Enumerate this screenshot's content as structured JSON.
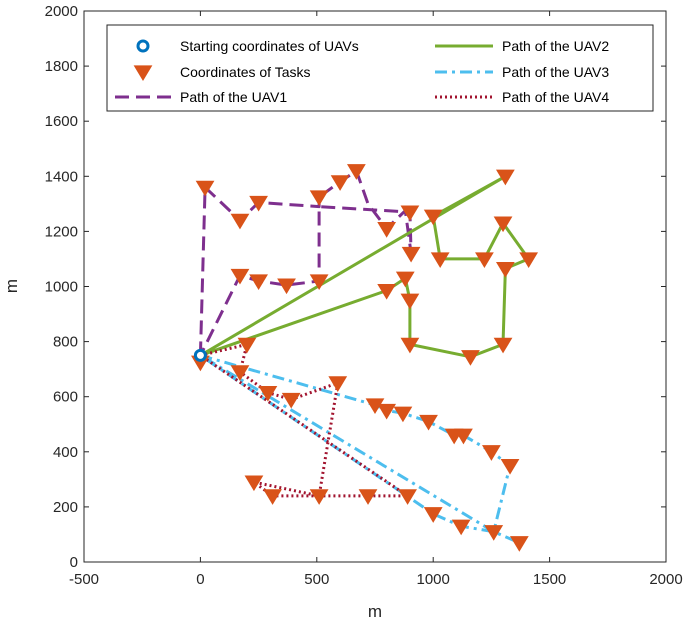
{
  "chart_data": {
    "type": "scatter",
    "title": "",
    "xlabel": "m",
    "ylabel": "m",
    "xlim": [
      -500,
      2000
    ],
    "ylim": [
      0,
      2000
    ],
    "xticks": [
      -500,
      0,
      500,
      1000,
      1500,
      2000
    ],
    "yticks": [
      0,
      200,
      400,
      600,
      800,
      1000,
      1200,
      1400,
      1600,
      1800,
      2000
    ],
    "grid": false,
    "legend_position": "top",
    "start": {
      "name": "Starting coordinates of UAVs",
      "x": 0,
      "y": 750,
      "color": "#0072BD"
    },
    "tasks": {
      "name": "Coordinates of Tasks",
      "color": "#D95319",
      "points": [
        [
          20,
          1360
        ],
        [
          170,
          1240
        ],
        [
          250,
          1305
        ],
        [
          510,
          1325
        ],
        [
          600,
          1380
        ],
        [
          670,
          1420
        ],
        [
          800,
          1210
        ],
        [
          900,
          1270
        ],
        [
          905,
          1120
        ],
        [
          170,
          1040
        ],
        [
          250,
          1020
        ],
        [
          370,
          1005
        ],
        [
          510,
          1020
        ],
        [
          1000,
          1255
        ],
        [
          1030,
          1100
        ],
        [
          1220,
          1100
        ],
        [
          1300,
          1230
        ],
        [
          1310,
          1065
        ],
        [
          1410,
          1100
        ],
        [
          1310,
          1400
        ],
        [
          800,
          985
        ],
        [
          880,
          1030
        ],
        [
          900,
          950
        ],
        [
          900,
          790
        ],
        [
          1160,
          745
        ],
        [
          1300,
          790
        ],
        [
          0,
          725
        ],
        [
          200,
          790
        ],
        [
          170,
          690
        ],
        [
          290,
          615
        ],
        [
          390,
          590
        ],
        [
          590,
          650
        ],
        [
          750,
          570
        ],
        [
          800,
          550
        ],
        [
          870,
          540
        ],
        [
          980,
          510
        ],
        [
          1090,
          460
        ],
        [
          1130,
          460
        ],
        [
          1250,
          400
        ],
        [
          1330,
          350
        ],
        [
          230,
          290
        ],
        [
          310,
          240
        ],
        [
          510,
          240
        ],
        [
          720,
          240
        ],
        [
          890,
          240
        ],
        [
          1000,
          175
        ],
        [
          1120,
          130
        ],
        [
          1260,
          110
        ],
        [
          1370,
          70
        ]
      ]
    },
    "series": [
      {
        "name": "Path of the UAV1",
        "color": "#7E2F8E",
        "style": "dashed",
        "points": [
          [
            0,
            750
          ],
          [
            20,
            1360
          ],
          [
            170,
            1240
          ],
          [
            250,
            1305
          ],
          [
            510,
            1290
          ],
          [
            510,
            1325
          ],
          [
            600,
            1380
          ],
          [
            670,
            1420
          ],
          [
            720,
            1300
          ],
          [
            800,
            1210
          ],
          [
            880,
            1275
          ],
          [
            905,
            1120
          ],
          [
            900,
            1270
          ],
          [
            510,
            1290
          ],
          [
            510,
            1020
          ],
          [
            370,
            1005
          ],
          [
            250,
            1020
          ],
          [
            170,
            1040
          ],
          [
            0,
            750
          ]
        ]
      },
      {
        "name": "Path of the UAV2",
        "color": "#77AC30",
        "style": "solid",
        "points": [
          [
            0,
            750
          ],
          [
            1310,
            1400
          ],
          [
            1000,
            1255
          ],
          [
            1030,
            1100
          ],
          [
            1220,
            1100
          ],
          [
            1300,
            1230
          ],
          [
            1410,
            1100
          ],
          [
            1310,
            1065
          ],
          [
            1300,
            790
          ],
          [
            1160,
            745
          ],
          [
            900,
            790
          ],
          [
            900,
            950
          ],
          [
            880,
            1030
          ],
          [
            800,
            985
          ],
          [
            0,
            750
          ]
        ]
      },
      {
        "name": "Path of the UAV3",
        "color": "#4DBEEE",
        "style": "dashdot",
        "points": [
          [
            0,
            750
          ],
          [
            750,
            570
          ],
          [
            800,
            550
          ],
          [
            870,
            540
          ],
          [
            980,
            510
          ],
          [
            1090,
            460
          ],
          [
            1130,
            460
          ],
          [
            1250,
            400
          ],
          [
            1330,
            350
          ],
          [
            1260,
            110
          ],
          [
            0,
            750
          ],
          [
            1000,
            175
          ],
          [
            1120,
            130
          ],
          [
            1260,
            110
          ],
          [
            1370,
            70
          ]
        ]
      },
      {
        "name": "Path of the UAV4",
        "color": "#A2142F",
        "style": "dotted",
        "points": [
          [
            0,
            750
          ],
          [
            200,
            790
          ],
          [
            170,
            690
          ],
          [
            290,
            615
          ],
          [
            390,
            590
          ],
          [
            590,
            650
          ],
          [
            510,
            240
          ],
          [
            310,
            240
          ],
          [
            230,
            290
          ],
          [
            510,
            240
          ],
          [
            720,
            240
          ],
          [
            890,
            240
          ],
          [
            0,
            750
          ]
        ]
      }
    ]
  }
}
